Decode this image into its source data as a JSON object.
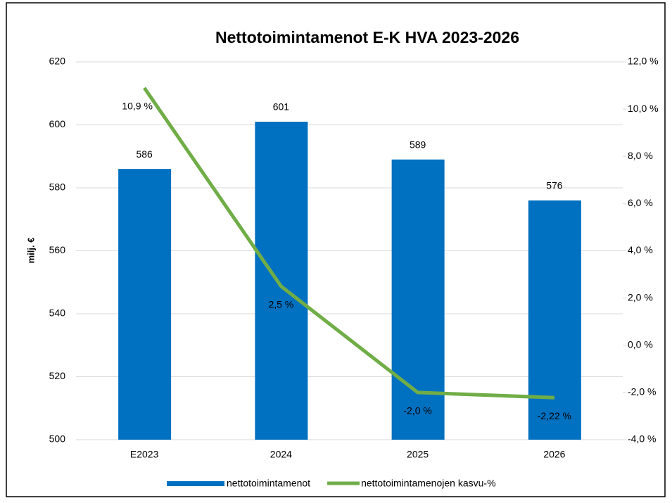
{
  "chart_data": {
    "type": "bar-line",
    "title": "Nettotoimintamenot E-K HVA 2023-2026",
    "ylabel": "milj. €",
    "categories": [
      "E2023",
      "2024",
      "2025",
      "2026"
    ],
    "series": [
      {
        "name": "nettotoimintamenot",
        "color": "#0070c0",
        "type": "bar",
        "values": [
          586,
          601,
          589,
          576
        ]
      },
      {
        "name": "nettotoimintamenojen kasvu-%",
        "color": "#70ad47",
        "type": "line",
        "axis": "y2",
        "values": [
          10.9,
          2.5,
          -2.0,
          -2.22
        ],
        "value_labels": [
          "10,9 %",
          "2,5 %",
          "-2,0 %",
          "-2,22 %"
        ]
      }
    ],
    "ylim": [
      500,
      620
    ],
    "yticks": [
      500,
      520,
      540,
      560,
      580,
      600,
      620
    ],
    "y2lim": [
      -4,
      12
    ],
    "y2ticks": [
      {
        "value": -4,
        "label": "-4,0 %"
      },
      {
        "value": -2,
        "label": "-2,0 %"
      },
      {
        "value": 0,
        "label": "0,0 %"
      },
      {
        "value": 2,
        "label": "2,0 %"
      },
      {
        "value": 4,
        "label": "4,0 %"
      },
      {
        "value": 6,
        "label": "6,0 %"
      },
      {
        "value": 8,
        "label": "8,0 %"
      },
      {
        "value": 10,
        "label": "10,0 %"
      },
      {
        "value": 12,
        "label": "12,0 %"
      }
    ],
    "grid": true,
    "legend": "bottom"
  }
}
